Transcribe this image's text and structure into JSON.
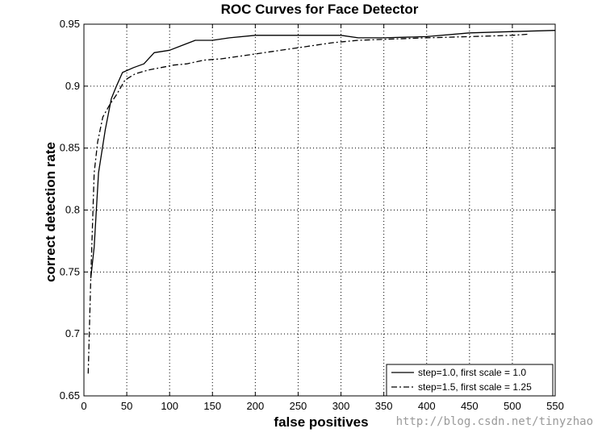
{
  "chart_data": {
    "type": "line",
    "title": "ROC Curves for Face Detector",
    "xlabel": "false positives",
    "ylabel": "correct detection rate",
    "xlim": [
      0,
      550
    ],
    "ylim": [
      0.65,
      0.95
    ],
    "xticks": [
      0,
      50,
      100,
      150,
      200,
      250,
      300,
      350,
      400,
      450,
      500,
      550
    ],
    "yticks": [
      0.65,
      0.7,
      0.75,
      0.8,
      0.85,
      0.9,
      0.95
    ],
    "xtick_labels": [
      "0",
      "50",
      "100",
      "150",
      "200",
      "250",
      "300",
      "350",
      "400",
      "450",
      "500",
      "550"
    ],
    "ytick_labels": [
      "0.65",
      "0.7",
      "0.75",
      "0.8",
      "0.85",
      "0.9",
      "0.95"
    ],
    "grid": true,
    "legend_position": "bottom-right",
    "series": [
      {
        "name": "step=1.0, first scale = 1.0",
        "style": "solid",
        "x": [
          8,
          12,
          17,
          25,
          32,
          38,
          45,
          58,
          70,
          82,
          100,
          115,
          130,
          150,
          170,
          200,
          250,
          300,
          320,
          350,
          400,
          450,
          500,
          550
        ],
        "y": [
          0.745,
          0.77,
          0.83,
          0.865,
          0.89,
          0.9,
          0.911,
          0.915,
          0.918,
          0.927,
          0.929,
          0.933,
          0.937,
          0.937,
          0.939,
          0.941,
          0.941,
          0.941,
          0.939,
          0.939,
          0.94,
          0.943,
          0.944,
          0.945
        ]
      },
      {
        "name": "step=1.5, first scale = 1.25",
        "style": "dashdot",
        "x": [
          5,
          8,
          12,
          16,
          22,
          30,
          38,
          48,
          60,
          75,
          90,
          105,
          120,
          140,
          160,
          180,
          200,
          250,
          290,
          320,
          360,
          400,
          450,
          500,
          520
        ],
        "y": [
          0.668,
          0.745,
          0.83,
          0.855,
          0.875,
          0.885,
          0.893,
          0.905,
          0.91,
          0.913,
          0.915,
          0.917,
          0.918,
          0.921,
          0.922,
          0.924,
          0.926,
          0.931,
          0.935,
          0.937,
          0.938,
          0.939,
          0.94,
          0.941,
          0.942
        ]
      }
    ]
  },
  "watermark": "http://blog.csdn.net/tinyzhao"
}
